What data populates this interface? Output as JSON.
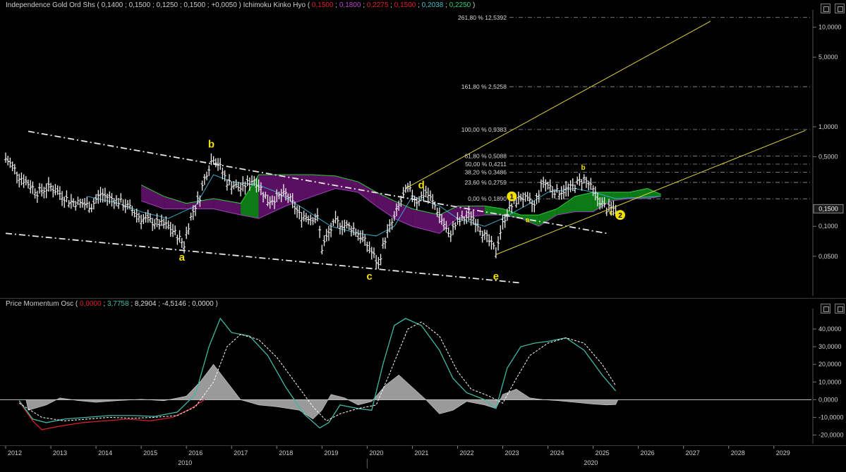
{
  "header": {
    "symbol": "Independence Gold Ord Shs",
    "ohlc": "( 0,1400 ; 0,1500 ; 0,1250 ; 0,1500 ; +0,0050 )",
    "indicator_name": "Ichimoku Kinko Hyo",
    "ichimoku_values": [
      {
        "text": "0,1500",
        "color": "#e0202a"
      },
      {
        "text": "0,1800",
        "color": "#c040d0"
      },
      {
        "text": "0,2275",
        "color": "#e0202a"
      },
      {
        "text": "0,1500",
        "color": "#e0202a"
      },
      {
        "text": "0,2038",
        "color": "#40c0d0"
      },
      {
        "text": "0,2250",
        "color": "#30d070"
      }
    ]
  },
  "osc_header": {
    "name": "Price Momentum Osc",
    "values": [
      {
        "text": "0,0000",
        "color": "#e0202a"
      },
      {
        "text": "3,7758",
        "color": "#40c0b0"
      },
      {
        "text": "8,2904",
        "color": "#dddddd"
      },
      {
        "text": "-4,5146",
        "color": "#dddddd"
      },
      {
        "text": "0,0000",
        "color": "#dddddd"
      }
    ]
  },
  "chart_data": [
    {
      "type": "bar",
      "title": "Independence Gold Ord Shs",
      "yscale": "log",
      "ylim": [
        0.02,
        14
      ],
      "xlim": [
        2012,
        2029.8
      ],
      "y_tick_labels": [
        "10,0000",
        "5,0000",
        "1,0000",
        "0,5000",
        "0,1000",
        "0,0500"
      ],
      "y_tick_values": [
        10,
        5,
        1,
        0.5,
        0.1,
        0.05
      ],
      "last_price_label": "0,1500",
      "last_price": 0.15,
      "fib_levels": [
        {
          "label": "261,80 % 12,5392",
          "value": 12.5392
        },
        {
          "label": "161,80 % 2,5258",
          "value": 2.5258
        },
        {
          "label": "100,00 % 0,9383",
          "value": 0.9383
        },
        {
          "label": "61,80 % 0,5088",
          "value": 0.5088
        },
        {
          "label": "50,00 % 0,4211",
          "value": 0.4211
        },
        {
          "label": "38,20 % 0,3486",
          "value": 0.3486
        },
        {
          "label": "23,60 % 0,2759",
          "value": 0.2759
        },
        {
          "label": "0,00 % 0,1890",
          "value": 0.189
        }
      ],
      "price_anchors": [
        [
          2012.0,
          0.48
        ],
        [
          2012.3,
          0.32
        ],
        [
          2012.7,
          0.22
        ],
        [
          2013.0,
          0.25
        ],
        [
          2013.4,
          0.18
        ],
        [
          2013.9,
          0.16
        ],
        [
          2014.1,
          0.21
        ],
        [
          2014.6,
          0.17
        ],
        [
          2015.0,
          0.12
        ],
        [
          2015.6,
          0.1
        ],
        [
          2015.95,
          0.065
        ],
        [
          2016.3,
          0.2
        ],
        [
          2016.6,
          0.5
        ],
        [
          2016.9,
          0.28
        ],
        [
          2017.2,
          0.24
        ],
        [
          2017.5,
          0.3
        ],
        [
          2017.8,
          0.18
        ],
        [
          2018.2,
          0.21
        ],
        [
          2018.5,
          0.13
        ],
        [
          2018.9,
          0.12
        ],
        [
          2019.0,
          0.06
        ],
        [
          2019.3,
          0.11
        ],
        [
          2019.7,
          0.095
        ],
        [
          2020.0,
          0.065
        ],
        [
          2020.25,
          0.04
        ],
        [
          2020.6,
          0.12
        ],
        [
          2020.9,
          0.24
        ],
        [
          2021.1,
          0.18
        ],
        [
          2021.3,
          0.22
        ],
        [
          2021.6,
          0.13
        ],
        [
          2021.8,
          0.08
        ],
        [
          2022.0,
          0.11
        ],
        [
          2022.3,
          0.13
        ],
        [
          2022.6,
          0.08
        ],
        [
          2022.85,
          0.055
        ],
        [
          2023.1,
          0.14
        ],
        [
          2023.4,
          0.2
        ],
        [
          2023.7,
          0.16
        ],
        [
          2023.9,
          0.28
        ],
        [
          2024.2,
          0.22
        ],
        [
          2024.5,
          0.24
        ],
        [
          2024.8,
          0.3
        ],
        [
          2025.1,
          0.19
        ],
        [
          2025.3,
          0.15
        ],
        [
          2025.5,
          0.15
        ]
      ],
      "tenkan_anchors": [
        [
          2013.8,
          0.2
        ],
        [
          2014.5,
          0.17
        ],
        [
          2015.0,
          0.14
        ],
        [
          2015.6,
          0.12
        ],
        [
          2016.2,
          0.16
        ],
        [
          2016.6,
          0.33
        ],
        [
          2017.0,
          0.28
        ],
        [
          2017.6,
          0.26
        ],
        [
          2018.0,
          0.22
        ],
        [
          2018.6,
          0.15
        ],
        [
          2019.2,
          0.1
        ],
        [
          2019.8,
          0.085
        ],
        [
          2020.2,
          0.08
        ],
        [
          2020.6,
          0.1
        ],
        [
          2021.0,
          0.2
        ],
        [
          2021.6,
          0.16
        ],
        [
          2022.0,
          0.12
        ],
        [
          2022.6,
          0.1
        ],
        [
          2023.0,
          0.12
        ],
        [
          2023.6,
          0.17
        ],
        [
          2024.0,
          0.22
        ],
        [
          2024.6,
          0.24
        ],
        [
          2025.0,
          0.22
        ],
        [
          2025.5,
          0.19
        ],
        [
          2026.5,
          0.2
        ]
      ],
      "kumo": {
        "top": [
          [
            2015.0,
            0.26
          ],
          [
            2015.5,
            0.2
          ],
          [
            2016.0,
            0.17
          ],
          [
            2016.6,
            0.19
          ],
          [
            2017.2,
            0.17
          ],
          [
            2017.6,
            0.33
          ],
          [
            2018.2,
            0.33
          ],
          [
            2018.8,
            0.33
          ],
          [
            2019.3,
            0.32
          ],
          [
            2019.8,
            0.28
          ],
          [
            2020.2,
            0.22
          ],
          [
            2020.6,
            0.18
          ],
          [
            2021.0,
            0.15
          ],
          [
            2021.6,
            0.13
          ],
          [
            2022.0,
            0.16
          ],
          [
            2022.6,
            0.16
          ],
          [
            2023.0,
            0.15
          ],
          [
            2023.4,
            0.13
          ],
          [
            2023.8,
            0.13
          ],
          [
            2024.2,
            0.15
          ],
          [
            2024.6,
            0.2
          ],
          [
            2025.0,
            0.22
          ],
          [
            2025.4,
            0.22
          ],
          [
            2025.8,
            0.22
          ],
          [
            2026.2,
            0.24
          ],
          [
            2026.5,
            0.21
          ]
        ],
        "bottom": [
          [
            2015.0,
            0.18
          ],
          [
            2015.5,
            0.15
          ],
          [
            2016.0,
            0.15
          ],
          [
            2016.6,
            0.15
          ],
          [
            2017.2,
            0.13
          ],
          [
            2017.6,
            0.12
          ],
          [
            2018.2,
            0.16
          ],
          [
            2018.8,
            0.2
          ],
          [
            2019.3,
            0.24
          ],
          [
            2019.8,
            0.22
          ],
          [
            2020.2,
            0.16
          ],
          [
            2020.6,
            0.12
          ],
          [
            2021.0,
            0.1
          ],
          [
            2021.6,
            0.085
          ],
          [
            2022.0,
            0.12
          ],
          [
            2022.6,
            0.13
          ],
          [
            2023.0,
            0.13
          ],
          [
            2023.4,
            0.12
          ],
          [
            2023.8,
            0.1
          ],
          [
            2024.2,
            0.13
          ],
          [
            2024.6,
            0.14
          ],
          [
            2025.0,
            0.14
          ],
          [
            2025.4,
            0.18
          ],
          [
            2025.8,
            0.19
          ],
          [
            2026.2,
            0.19
          ],
          [
            2026.5,
            0.2
          ]
        ]
      },
      "trend_lines": [
        {
          "style": "dash-dot",
          "color": "#e8e8e8",
          "points": [
            [
              2012.5,
              0.9
            ],
            [
              2025.3,
              0.085
            ]
          ]
        },
        {
          "style": "dash-dot",
          "color": "#e8e8e8",
          "points": [
            [
              2012.0,
              0.085
            ],
            [
              2023.4,
              0.027
            ]
          ]
        },
        {
          "style": "solid",
          "color": "#e0d040",
          "points": [
            [
              2020.85,
              0.24
            ],
            [
              2027.6,
              11.5
            ]
          ]
        },
        {
          "style": "solid",
          "color": "#e0d040",
          "points": [
            [
              2022.85,
              0.052
            ],
            [
              2029.7,
              0.92
            ]
          ]
        }
      ],
      "wave_labels": [
        {
          "text": "a",
          "x": 2015.9,
          "y": 0.045,
          "size": "large"
        },
        {
          "text": "b",
          "x": 2016.55,
          "y": 0.62,
          "size": "large"
        },
        {
          "text": "c",
          "x": 2020.05,
          "y": 0.029,
          "size": "large"
        },
        {
          "text": "d",
          "x": 2021.2,
          "y": 0.24,
          "size": "large"
        },
        {
          "text": "e",
          "x": 2022.85,
          "y": 0.029,
          "size": "large"
        },
        {
          "text": "a",
          "x": 2023.55,
          "y": 0.11,
          "size": "small"
        },
        {
          "text": "b",
          "x": 2024.78,
          "y": 0.37,
          "size": "small"
        },
        {
          "text": "c",
          "x": 2025.4,
          "y": 0.13,
          "size": "small"
        }
      ],
      "wave_markers": [
        {
          "text": "1",
          "x": 2023.2,
          "y": 0.2
        },
        {
          "text": "2",
          "x": 2025.6,
          "y": 0.13
        }
      ]
    },
    {
      "type": "area",
      "title": "Price Momentum Osc",
      "ylim": [
        -25000,
        50000
      ],
      "y_tick_labels": [
        "40,0000",
        "30,0000",
        "20,0000",
        "10,0000",
        "0,0000",
        "-10,0000",
        "-20,0000"
      ],
      "y_tick_values": [
        40000,
        30000,
        20000,
        10000,
        0,
        -10000,
        -20000
      ],
      "histogram": [
        [
          2012.45,
          0
        ],
        [
          2012.5,
          -6000
        ],
        [
          2012.9,
          -3000
        ],
        [
          2013.2,
          1000
        ],
        [
          2013.6,
          -500
        ],
        [
          2014.0,
          -1500
        ],
        [
          2014.5,
          -500
        ],
        [
          2015.0,
          200
        ],
        [
          2015.5,
          -600
        ],
        [
          2016.0,
          2000
        ],
        [
          2016.3,
          10000
        ],
        [
          2016.6,
          20000
        ],
        [
          2016.9,
          10000
        ],
        [
          2017.2,
          0
        ],
        [
          2017.6,
          -3000
        ],
        [
          2018.0,
          -4000
        ],
        [
          2018.5,
          -6000
        ],
        [
          2018.8,
          -11000
        ],
        [
          2019.0,
          -6000
        ],
        [
          2019.2,
          3000
        ],
        [
          2019.5,
          1000
        ],
        [
          2019.8,
          -3000
        ],
        [
          2020.1,
          -1000
        ],
        [
          2020.4,
          8000
        ],
        [
          2020.7,
          14000
        ],
        [
          2021.0,
          7000
        ],
        [
          2021.3,
          0
        ],
        [
          2021.6,
          -8000
        ],
        [
          2021.9,
          -6000
        ],
        [
          2022.2,
          -1000
        ],
        [
          2022.6,
          -3000
        ],
        [
          2022.85,
          -5000
        ],
        [
          2023.0,
          3000
        ],
        [
          2023.3,
          6000
        ],
        [
          2023.6,
          1000
        ],
        [
          2023.9,
          0
        ],
        [
          2024.2,
          -500
        ],
        [
          2024.6,
          -1500
        ],
        [
          2025.0,
          -2500
        ],
        [
          2025.3,
          -3000
        ],
        [
          2025.5,
          -2800
        ],
        [
          2025.55,
          0
        ]
      ],
      "fast_line": [
        [
          2012.3,
          -500
        ],
        [
          2012.6,
          -11000
        ],
        [
          2012.9,
          -13000
        ],
        [
          2013.3,
          -11000
        ],
        [
          2013.8,
          -10000
        ],
        [
          2014.3,
          -9000
        ],
        [
          2014.8,
          -9000
        ],
        [
          2015.3,
          -9500
        ],
        [
          2015.8,
          -7000
        ],
        [
          2016.2,
          3000
        ],
        [
          2016.5,
          30000
        ],
        [
          2016.75,
          46000
        ],
        [
          2017.0,
          38000
        ],
        [
          2017.4,
          36000
        ],
        [
          2017.8,
          25000
        ],
        [
          2018.2,
          7000
        ],
        [
          2018.6,
          -8000
        ],
        [
          2018.95,
          -16000
        ],
        [
          2019.15,
          -13000
        ],
        [
          2019.4,
          -3000
        ],
        [
          2019.8,
          -5000
        ],
        [
          2020.1,
          -6000
        ],
        [
          2020.35,
          20000
        ],
        [
          2020.6,
          42000
        ],
        [
          2020.85,
          46000
        ],
        [
          2021.2,
          42000
        ],
        [
          2021.6,
          28000
        ],
        [
          2021.9,
          12000
        ],
        [
          2022.2,
          4000
        ],
        [
          2022.6,
          0
        ],
        [
          2022.85,
          -5000
        ],
        [
          2023.1,
          18000
        ],
        [
          2023.4,
          30000
        ],
        [
          2023.7,
          32000
        ],
        [
          2024.0,
          33000
        ],
        [
          2024.4,
          35000
        ],
        [
          2024.8,
          28000
        ],
        [
          2025.2,
          14000
        ],
        [
          2025.5,
          5000
        ]
      ],
      "slow_line": [
        [
          2012.3,
          -2000
        ],
        [
          2012.8,
          -10000
        ],
        [
          2013.3,
          -12000
        ],
        [
          2013.8,
          -11000
        ],
        [
          2014.3,
          -10000
        ],
        [
          2014.8,
          -10500
        ],
        [
          2015.3,
          -10000
        ],
        [
          2015.8,
          -9000
        ],
        [
          2016.2,
          -4000
        ],
        [
          2016.6,
          10000
        ],
        [
          2016.9,
          30000
        ],
        [
          2017.2,
          37000
        ],
        [
          2017.6,
          34000
        ],
        [
          2018.0,
          24000
        ],
        [
          2018.4,
          10000
        ],
        [
          2018.8,
          -4000
        ],
        [
          2019.1,
          -12000
        ],
        [
          2019.4,
          -8000
        ],
        [
          2019.8,
          -5000
        ],
        [
          2020.2,
          -3000
        ],
        [
          2020.5,
          15000
        ],
        [
          2020.9,
          40000
        ],
        [
          2021.2,
          44000
        ],
        [
          2021.6,
          36000
        ],
        [
          2022.0,
          16000
        ],
        [
          2022.3,
          6000
        ],
        [
          2022.7,
          2000
        ],
        [
          2023.0,
          -2000
        ],
        [
          2023.3,
          12000
        ],
        [
          2023.6,
          25000
        ],
        [
          2024.0,
          32000
        ],
        [
          2024.4,
          35000
        ],
        [
          2024.8,
          32000
        ],
        [
          2025.2,
          20000
        ],
        [
          2025.5,
          8000
        ]
      ],
      "red_line": [
        [
          2012.3,
          -1000
        ],
        [
          2012.6,
          -12000
        ],
        [
          2012.8,
          -17000
        ],
        [
          2013.2,
          -15000
        ],
        [
          2013.7,
          -13000
        ],
        [
          2014.2,
          -12000
        ],
        [
          2014.7,
          -11000
        ],
        [
          2015.2,
          -12000
        ],
        [
          2015.7,
          -10000
        ],
        [
          2016.1,
          -5000
        ],
        [
          2016.4,
          0
        ]
      ]
    }
  ],
  "x_axis": {
    "year_labels": [
      "2012",
      "2013",
      "2014",
      "2015",
      "2016",
      "2017",
      "2018",
      "2019",
      "2020",
      "2021",
      "2022",
      "2023",
      "2024",
      "2025",
      "2026",
      "2027",
      "2028",
      "2029"
    ],
    "year_values": [
      2012,
      2013,
      2014,
      2015,
      2016,
      2017,
      2018,
      2019,
      2020,
      2021,
      2022,
      2023,
      2024,
      2025,
      2026,
      2027,
      2028,
      2029
    ],
    "sub_labels": [
      {
        "text": "2010",
        "x": 2015.97
      },
      {
        "text": "2020",
        "x": 2024.95
      }
    ]
  }
}
